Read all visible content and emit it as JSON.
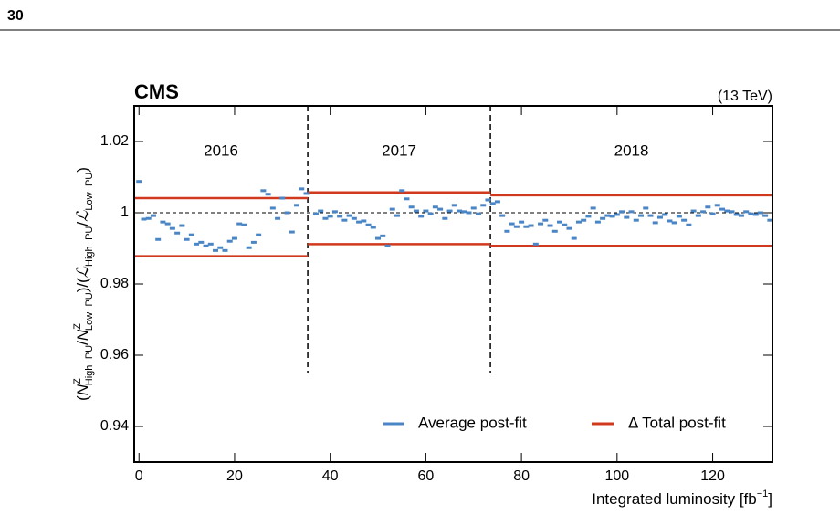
{
  "page_number": "30",
  "chart_data": {
    "type": "scatter",
    "experiment": "CMS",
    "energy": "(13 TeV)",
    "xlabel": [
      "Integrated luminosity [fb",
      "−1",
      "]"
    ],
    "ylabel": [
      "(",
      "N",
      "Z",
      "High−PU",
      "/",
      "N",
      "Z",
      "Low−PU",
      ")/(",
      "ℒ",
      "High−PU",
      "/",
      "ℒ",
      "Low−PU",
      ")"
    ],
    "xlim": [
      -1,
      132.5
    ],
    "ylim": [
      0.93,
      1.03
    ],
    "xticks": [
      0,
      20,
      40,
      60,
      80,
      100,
      120
    ],
    "yticks": [
      0.94,
      0.96,
      0.98,
      1,
      1.02
    ],
    "reference_line": 1,
    "year_boundaries": [
      35.3,
      73.5
    ],
    "boundary_ymin": 0.955,
    "annotations": [
      "2016",
      "2017",
      "2018"
    ],
    "legend": "lower right",
    "series": [
      {
        "name": "Average post-fit",
        "color": "#4a86c5",
        "x": [
          0,
          1,
          2,
          3,
          4,
          5,
          6,
          7,
          8,
          9,
          10,
          11,
          12,
          13,
          14,
          15,
          16,
          17,
          18,
          19,
          20,
          21,
          22,
          23,
          24,
          25,
          26,
          27,
          28,
          29,
          30,
          31,
          32,
          33,
          34,
          35,
          37,
          38,
          39,
          40,
          41,
          42,
          43,
          44,
          45,
          46,
          47,
          48,
          49,
          50,
          51,
          52,
          53,
          54,
          55,
          56,
          57,
          58,
          59,
          60,
          61,
          62,
          63,
          64,
          65,
          66,
          67,
          68,
          69,
          70,
          71,
          72,
          73,
          74,
          75,
          76,
          77,
          78,
          79,
          80,
          81,
          82,
          83,
          84,
          85,
          86,
          87,
          88,
          89,
          90,
          91,
          92,
          93,
          94,
          95,
          96,
          97,
          98,
          99,
          100,
          101,
          102,
          103,
          104,
          105,
          106,
          107,
          108,
          109,
          110,
          111,
          112,
          113,
          114,
          115,
          116,
          117,
          118,
          119,
          120,
          121,
          122,
          123,
          124,
          125,
          126,
          127,
          128,
          129,
          130,
          131,
          132
        ],
        "values": [
          1.0088,
          0.9982,
          0.9984,
          0.9992,
          0.9925,
          0.9974,
          0.9969,
          0.9956,
          0.9943,
          0.9964,
          0.9925,
          0.9938,
          0.9912,
          0.9917,
          0.9907,
          0.9912,
          0.9894,
          0.9902,
          0.9894,
          0.992,
          0.9928,
          0.9969,
          0.9966,
          0.9902,
          0.9917,
          0.9938,
          1.0062,
          1.0052,
          1.0013,
          0.9984,
          1.0041,
          1.0,
          0.9946,
          1.0021,
          1.0067,
          1.0054,
          0.9997,
          1.0005,
          0.9984,
          0.999,
          1.0003,
          0.999,
          0.9979,
          0.9992,
          0.9984,
          0.9974,
          0.9977,
          0.9966,
          0.9959,
          0.9928,
          0.9935,
          0.9907,
          1.001,
          0.9992,
          1.0062,
          1.0039,
          1.0016,
          1.0005,
          0.999,
          1.0005,
          0.9997,
          1.0016,
          1.001,
          0.9984,
          1.0005,
          1.0021,
          1.0005,
          1.0003,
          1.0,
          1.0013,
          0.9997,
          1.0021,
          1.0036,
          1.0026,
          1.0031,
          0.9992,
          0.9948,
          0.9969,
          0.9961,
          0.9974,
          0.9961,
          0.9964,
          0.9912,
          0.9969,
          0.9979,
          0.9964,
          0.9948,
          0.9974,
          0.9966,
          0.9956,
          0.9928,
          0.9974,
          0.9979,
          0.999,
          1.0013,
          0.9974,
          0.9984,
          0.9992,
          0.999,
          0.9995,
          1.0003,
          0.9987,
          1.0003,
          0.9979,
          0.9992,
          1.0013,
          0.9992,
          0.9972,
          0.9987,
          0.9995,
          0.9977,
          0.9972,
          0.999,
          0.9979,
          0.9966,
          1.0005,
          0.9992,
          1.0003,
          1.0016,
          0.9997,
          1.0021,
          1.001,
          1.0005,
          1.0003,
          0.9995,
          0.9992,
          1.0003,
          0.9997,
          0.9995,
          1.0,
          0.9992,
          0.9979
        ]
      }
    ],
    "bands": {
      "name": "Δ Total post-fit",
      "color": "#d0391d",
      "upper": [
        1.0041,
        1.0057,
        1.0049
      ],
      "lower": [
        0.9878,
        0.9912,
        0.9907
      ]
    }
  }
}
